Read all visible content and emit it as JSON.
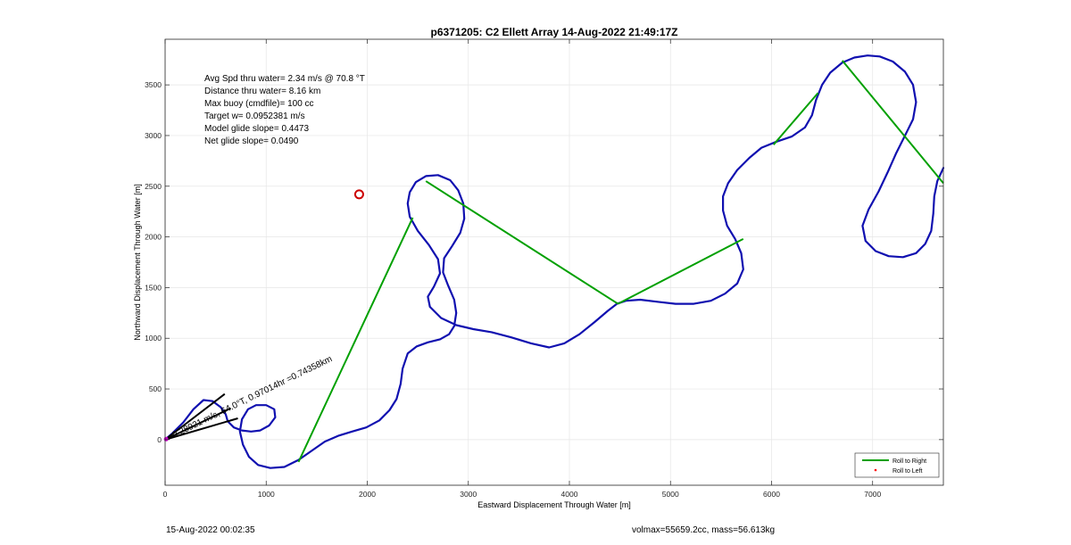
{
  "chart_data": {
    "type": "line",
    "title": "p6371205: C2 Ellett Array 14-Aug-2022 21:49:17Z",
    "xlabel": "Eastward Displacement Through Water [m]",
    "ylabel": "Northward Displacement Through Water [m]",
    "xlim": [
      0,
      7700
    ],
    "ylim": [
      -450,
      3950
    ],
    "xticks": [
      0,
      1000,
      2000,
      3000,
      4000,
      5000,
      6000,
      7000
    ],
    "yticks": [
      0,
      500,
      1000,
      1500,
      2000,
      2500,
      3000,
      3500
    ],
    "grid": true,
    "legend": {
      "placement": "bottom-right",
      "entries": [
        {
          "label": "Roll to Right",
          "color": "#00a000",
          "marker": "line"
        },
        {
          "label": "Roll to Left",
          "color": "#ff0000",
          "marker": "dot"
        }
      ]
    },
    "stats_lines": [
      "Avg Spd thru water=  2.34 m/s @  70.8 °T",
      "Distance thru water=  8.16 km",
      "Max buoy (cmdfile)= 100 cc",
      "Target w= 0.0952381 m/s",
      "Model glide slope= 0.4473",
      "Net glide slope= 0.0490"
    ],
    "vector_annotation": "0.28921 m/s, 64.0°T, 0.97014hr =0.74358km",
    "series": [
      {
        "color": "#1010b0",
        "points": [
          [
            0,
            0
          ],
          [
            70,
            60
          ],
          [
            180,
            170
          ],
          [
            280,
            300
          ],
          [
            380,
            390
          ],
          [
            470,
            380
          ],
          [
            550,
            320
          ],
          [
            600,
            250
          ],
          [
            620,
            180
          ],
          [
            680,
            120
          ],
          [
            760,
            90
          ],
          [
            850,
            80
          ],
          [
            940,
            90
          ],
          [
            1030,
            140
          ],
          [
            1090,
            220
          ],
          [
            1080,
            300
          ],
          [
            1000,
            340
          ],
          [
            900,
            340
          ],
          [
            820,
            300
          ],
          [
            760,
            200
          ],
          [
            740,
            80
          ],
          [
            770,
            -50
          ],
          [
            830,
            -170
          ],
          [
            920,
            -250
          ],
          [
            1040,
            -280
          ],
          [
            1180,
            -270
          ],
          [
            1320,
            -200
          ],
          [
            1450,
            -110
          ],
          [
            1580,
            -20
          ],
          [
            1720,
            40
          ],
          [
            1850,
            80
          ],
          [
            1990,
            120
          ],
          [
            2120,
            190
          ],
          [
            2220,
            290
          ],
          [
            2290,
            400
          ],
          [
            2330,
            550
          ],
          [
            2350,
            700
          ],
          [
            2400,
            850
          ],
          [
            2490,
            920
          ],
          [
            2600,
            960
          ],
          [
            2720,
            990
          ],
          [
            2810,
            1040
          ],
          [
            2860,
            1120
          ],
          [
            2880,
            1250
          ],
          [
            2860,
            1380
          ],
          [
            2800,
            1520
          ],
          [
            2750,
            1650
          ],
          [
            2760,
            1790
          ],
          [
            2840,
            1910
          ],
          [
            2920,
            2040
          ],
          [
            2960,
            2180
          ],
          [
            2950,
            2330
          ],
          [
            2900,
            2460
          ],
          [
            2820,
            2560
          ],
          [
            2700,
            2610
          ],
          [
            2580,
            2600
          ],
          [
            2480,
            2540
          ],
          [
            2420,
            2440
          ],
          [
            2400,
            2330
          ],
          [
            2420,
            2200
          ],
          [
            2500,
            2060
          ],
          [
            2610,
            1920
          ],
          [
            2700,
            1780
          ],
          [
            2720,
            1640
          ],
          [
            2660,
            1510
          ],
          [
            2600,
            1410
          ],
          [
            2620,
            1310
          ],
          [
            2730,
            1200
          ],
          [
            2880,
            1130
          ],
          [
            3050,
            1090
          ],
          [
            3230,
            1060
          ],
          [
            3420,
            1010
          ],
          [
            3620,
            950
          ],
          [
            3800,
            910
          ],
          [
            3950,
            950
          ],
          [
            4100,
            1040
          ],
          [
            4250,
            1160
          ],
          [
            4380,
            1270
          ],
          [
            4470,
            1340
          ],
          [
            4560,
            1370
          ],
          [
            4700,
            1380
          ],
          [
            4870,
            1360
          ],
          [
            5050,
            1340
          ],
          [
            5230,
            1340
          ],
          [
            5400,
            1370
          ],
          [
            5540,
            1440
          ],
          [
            5660,
            1540
          ],
          [
            5720,
            1680
          ],
          [
            5700,
            1840
          ],
          [
            5640,
            1980
          ],
          [
            5560,
            2110
          ],
          [
            5520,
            2260
          ],
          [
            5520,
            2400
          ],
          [
            5570,
            2530
          ],
          [
            5660,
            2660
          ],
          [
            5780,
            2780
          ],
          [
            5900,
            2880
          ],
          [
            6050,
            2940
          ],
          [
            6200,
            2990
          ],
          [
            6330,
            3080
          ],
          [
            6400,
            3200
          ],
          [
            6440,
            3350
          ],
          [
            6500,
            3500
          ],
          [
            6580,
            3620
          ],
          [
            6700,
            3720
          ],
          [
            6820,
            3770
          ],
          [
            6950,
            3790
          ],
          [
            7070,
            3780
          ],
          [
            7200,
            3730
          ],
          [
            7320,
            3630
          ],
          [
            7400,
            3500
          ],
          [
            7430,
            3330
          ],
          [
            7400,
            3160
          ],
          [
            7320,
            3000
          ],
          [
            7230,
            2820
          ],
          [
            7150,
            2640
          ],
          [
            7060,
            2450
          ],
          [
            6960,
            2270
          ],
          [
            6900,
            2110
          ],
          [
            6930,
            1960
          ],
          [
            7030,
            1860
          ],
          [
            7160,
            1810
          ],
          [
            7300,
            1800
          ],
          [
            7430,
            1840
          ],
          [
            7520,
            1930
          ],
          [
            7580,
            2060
          ],
          [
            7600,
            2230
          ],
          [
            7610,
            2400
          ],
          [
            7640,
            2550
          ],
          [
            7700,
            2680
          ]
        ]
      },
      {
        "name": "Roll to Right",
        "color": "#00a000",
        "segments": [
          [
            [
              1320,
              -220
            ],
            [
              2450,
              2190
            ]
          ],
          [
            [
              2580,
              2550
            ],
            [
              4480,
              1340
            ]
          ],
          [
            [
              4480,
              1340
            ],
            [
              5720,
              1980
            ]
          ],
          [
            [
              6020,
              2910
            ],
            [
              6460,
              3420
            ]
          ],
          [
            [
              6700,
              3740
            ],
            [
              7700,
              2530
            ]
          ]
        ]
      }
    ],
    "waypoint": {
      "x": 1920,
      "y": 2420,
      "color": "#cc0000"
    },
    "current_vectors": [
      {
        "from": [
          0,
          0
        ],
        "to": [
          590,
          450
        ],
        "color": "#000000"
      },
      {
        "from": [
          0,
          0
        ],
        "to": [
          650,
          310
        ],
        "color": "#000000"
      },
      {
        "from": [
          0,
          0
        ],
        "to": [
          720,
          210
        ],
        "color": "#000000"
      }
    ],
    "origin_marker": {
      "x": 10,
      "y": 5,
      "color": "#d000d0"
    }
  },
  "footer": {
    "left": "15-Aug-2022 00:02:35",
    "right": "volmax=55659.2cc, mass=56.613kg"
  }
}
